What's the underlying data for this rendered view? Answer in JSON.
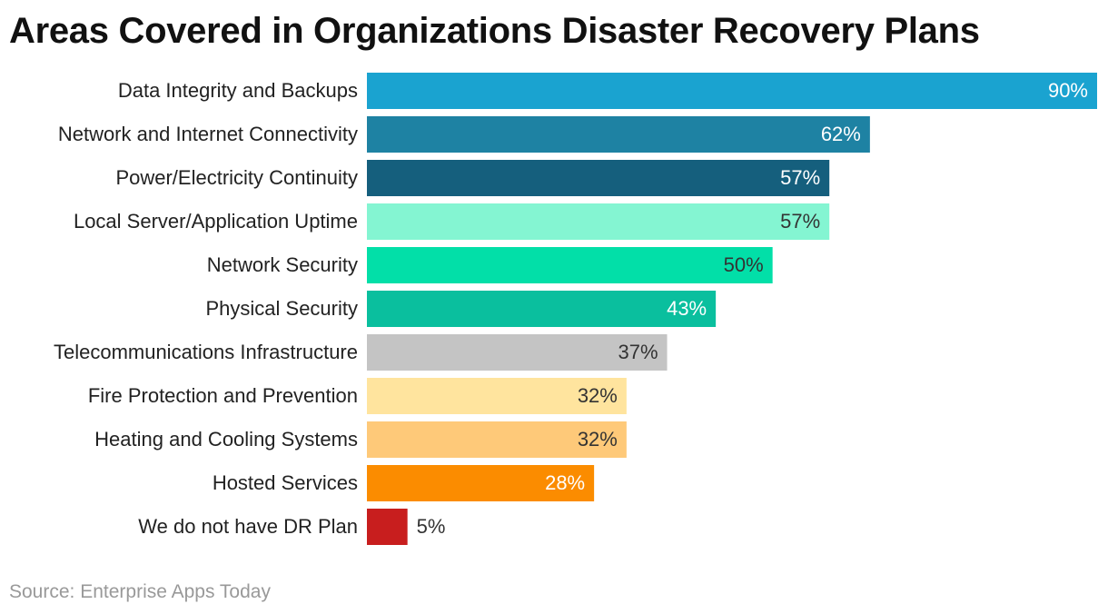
{
  "title": "Areas Covered in Organizations Disaster Recovery Plans",
  "source": "Source: Enterprise Apps Today",
  "chart_data": {
    "type": "bar",
    "orientation": "horizontal",
    "title": "Areas Covered in Organizations Disaster Recovery Plans",
    "xlabel": "",
    "ylabel": "",
    "xlim": [
      0,
      90
    ],
    "grid": false,
    "categories": [
      "Data Integrity and Backups",
      "Network and Internet Connectivity",
      "Power/Electricity Continuity",
      "Local Server/Application Uptime",
      "Network Security",
      "Physical Security",
      "Telecommunications Infrastructure",
      "Fire Protection and Prevention",
      "Heating and Cooling Systems",
      "Hosted Services",
      "We do not have DR Plan"
    ],
    "values": [
      90,
      62,
      57,
      57,
      50,
      43,
      37,
      32,
      32,
      28,
      5
    ],
    "data_labels": [
      "90%",
      "62%",
      "57%",
      "57%",
      "50%",
      "43%",
      "37%",
      "32%",
      "32%",
      "28%",
      "5%"
    ],
    "colors": [
      "#1aa3d0",
      "#1e82a3",
      "#155f7d",
      "#84f5d2",
      "#02dfa8",
      "#0abf9e",
      "#c4c4c4",
      "#ffe49e",
      "#fec979",
      "#fb8c00",
      "#c81e1e"
    ],
    "label_colors": [
      "#ffffff",
      "#ffffff",
      "#ffffff",
      "#333333",
      "#333333",
      "#ffffff",
      "#333333",
      "#333333",
      "#333333",
      "#ffffff",
      "#333333"
    ]
  }
}
